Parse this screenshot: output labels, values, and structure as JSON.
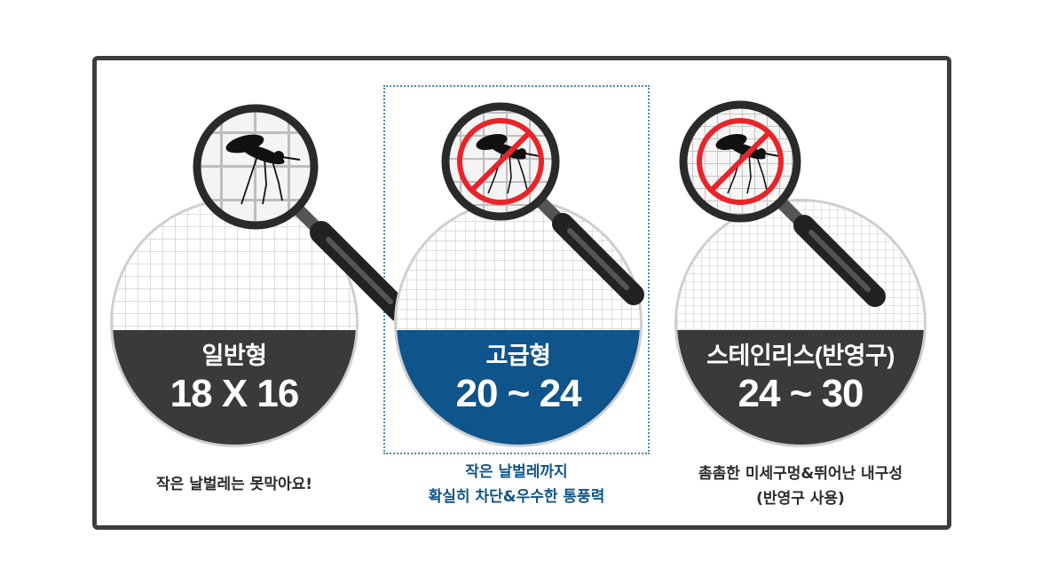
{
  "panels": [
    {
      "grade": "일반형",
      "spec": "18 X 16",
      "band_color": "#3a3a3a",
      "caption_lines": [
        "작은 날벌레는 못막아요!"
      ],
      "caption_color": "#2b2b2b",
      "lens_icon": "mosquito-icon",
      "blocked": false
    },
    {
      "grade": "고급형",
      "spec": "20 ~ 24",
      "band_color": "#0f548a",
      "caption_lines": [
        "작은 날벌레까지",
        "확실히 차단&우수한 통풍력"
      ],
      "caption_color": "#10558a",
      "lens_icon": "no-mosquito-icon",
      "blocked": true
    },
    {
      "grade": "스테인리스(반영구)",
      "spec": "24 ~ 30",
      "band_color": "#3a3a3a",
      "caption_lines": [
        "촘촘한 미세구멍&뛰어난 내구성",
        "(반영구 사용)"
      ],
      "caption_color": "#2b2b2b",
      "lens_icon": "no-mosquito-icon",
      "blocked": true
    }
  ],
  "colors": {
    "frame": "#3d3d3d",
    "highlight_border": "#4a8cae",
    "prohibition_red": "#e8242a",
    "mesh_line": "#c9c9c9"
  }
}
